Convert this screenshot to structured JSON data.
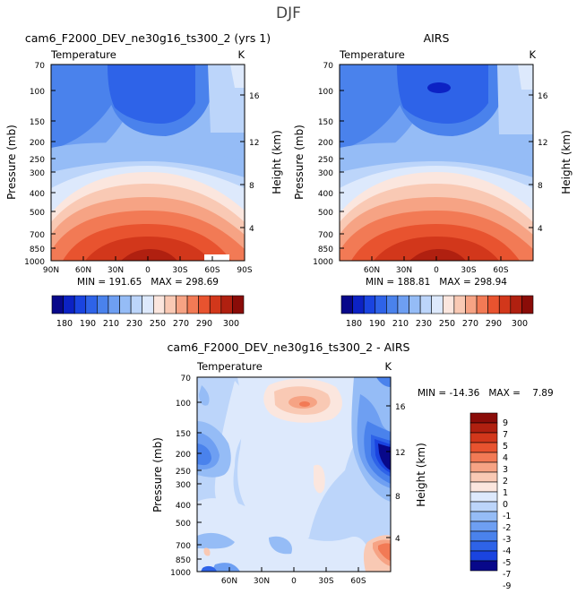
{
  "page_title": "DJF",
  "chart_data": [
    {
      "type": "heatmap",
      "title": "cam6_F2000_DEV_ne30g16_ts300_2 (yrs 1)",
      "subtitle_left": "Temperature",
      "subtitle_right": "K",
      "ylabel": "Pressure (mb)",
      "ylabel_right": "Height (km)",
      "xticks": [
        "90N",
        "60N",
        "30N",
        "0",
        "30S",
        "60S",
        "90S"
      ],
      "yticks": [
        "70",
        "100",
        "150",
        "200",
        "250",
        "300",
        "400",
        "500",
        "700",
        "850",
        "1000"
      ],
      "yticks_right": [
        "16",
        "12",
        "8",
        "4"
      ],
      "stats": "MIN = 191.65   MAX = 298.69",
      "colorbar_labels": [
        "180",
        "190",
        "210",
        "230",
        "250",
        "270",
        "290",
        "300"
      ]
    },
    {
      "type": "heatmap",
      "title": "AIRS",
      "subtitle_left": "Temperature",
      "subtitle_right": "K",
      "ylabel": "Pressure (mb)",
      "ylabel_right": "Height (km)",
      "xticks": [
        "60N",
        "30N",
        "0",
        "30S",
        "60S"
      ],
      "yticks": [
        "70",
        "100",
        "150",
        "200",
        "250",
        "300",
        "400",
        "500",
        "700",
        "850",
        "1000"
      ],
      "yticks_right": [
        "16",
        "12",
        "8",
        "4"
      ],
      "stats": "MIN = 188.81   MAX = 298.94",
      "colorbar_labels": [
        "180",
        "190",
        "210",
        "230",
        "250",
        "270",
        "290",
        "300"
      ]
    },
    {
      "type": "heatmap",
      "title": "cam6_F2000_DEV_ne30g16_ts300_2 - AIRS",
      "subtitle_left": "Temperature",
      "subtitle_right": "K",
      "ylabel": "Pressure (mb)",
      "ylabel_right": "Height (km)",
      "xticks": [
        "60N",
        "30N",
        "0",
        "30S",
        "60S"
      ],
      "yticks": [
        "70",
        "100",
        "150",
        "200",
        "250",
        "300",
        "400",
        "500",
        "700",
        "850",
        "1000"
      ],
      "yticks_right": [
        "16",
        "12",
        "8",
        "4"
      ],
      "stats": "MIN = -14.36   MAX =    7.89",
      "colorbar_labels": [
        "9",
        "7",
        "5",
        "4",
        "3",
        "2",
        "1",
        "0",
        "-1",
        "-2",
        "-3",
        "-4",
        "-5",
        "-7",
        "-9"
      ]
    }
  ],
  "colors": {
    "temp_palette": [
      "#08088a",
      "#0c22c4",
      "#1a44e0",
      "#2e63e8",
      "#4a82ec",
      "#6e9ff2",
      "#95bcf6",
      "#bcd5fa",
      "#dde9fc",
      "#fbe6de",
      "#f9c9b4",
      "#f6a384",
      "#f27a55",
      "#e8532f",
      "#d2371b",
      "#b02010",
      "#8a0c08"
    ],
    "diff_palette": [
      "#8a0c08",
      "#b02010",
      "#d2371b",
      "#e8532f",
      "#f27a55",
      "#f6a384",
      "#f9c9b4",
      "#fbe6de",
      "#dde9fc",
      "#bcd5fa",
      "#95bcf6",
      "#6e9ff2",
      "#4a82ec",
      "#2e63e8",
      "#1a44e0",
      "#08088a"
    ]
  }
}
